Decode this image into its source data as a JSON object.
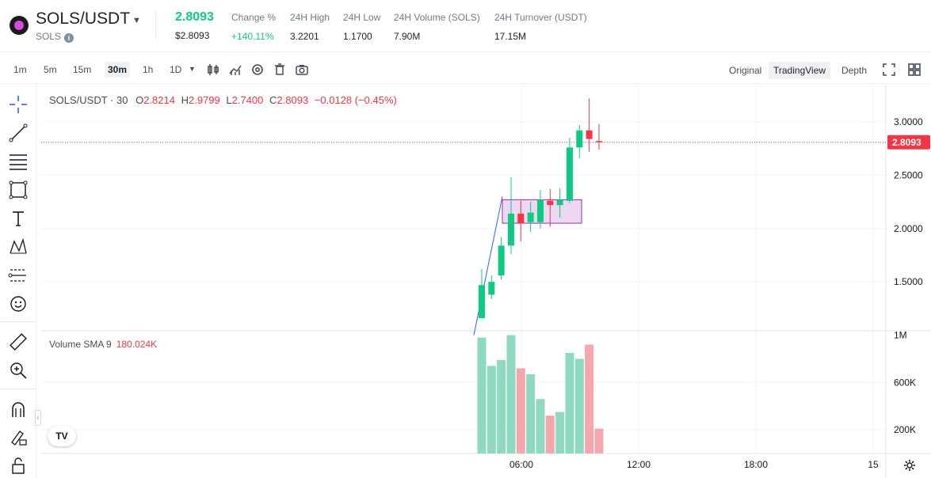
{
  "header": {
    "pair": "SOLS/USDT",
    "sub": "SOLS",
    "last_price": "2.8093",
    "last_price_usd": "$2.8093",
    "stats": [
      {
        "label": "Change %",
        "value": "+140.11%",
        "positive": true
      },
      {
        "label": "24H High",
        "value": "3.2201"
      },
      {
        "label": "24H Low",
        "value": "1.1700"
      },
      {
        "label": "24H Volume (SOLS)",
        "value": "7.90M"
      },
      {
        "label": "24H Turnover (USDT)",
        "value": "17.15M"
      }
    ]
  },
  "toolbar": {
    "intervals": [
      "1m",
      "5m",
      "15m",
      "30m",
      "1h",
      "1D"
    ],
    "active_interval": "30m",
    "views": [
      "Original",
      "TradingView",
      "Depth"
    ],
    "active_view": "TradingView",
    "icons": [
      "candle-type-icon",
      "indicators-icon",
      "settings-icon",
      "delete-icon",
      "screenshot-icon",
      "fullscreen-icon",
      "layout-icon"
    ]
  },
  "left_tools": [
    "crosshair-icon",
    "trend-line-icon",
    "fib-retracement-icon",
    "rectangle-icon",
    "text-icon",
    "pattern-icon",
    "prediction-icon",
    "emoji-icon",
    "ruler-icon",
    "zoom-in-icon",
    "magnet-icon",
    "lock-drawing-icon",
    "lock-icon"
  ],
  "legend": {
    "symbol": "SOLS/USDT · 30",
    "open_label": "O",
    "open": "2.8214",
    "high_label": "H",
    "high": "2.9799",
    "low_label": "L",
    "low": "2.7400",
    "close_label": "C",
    "close": "2.8093",
    "change": "−0.0128 (−0.45%)"
  },
  "volume_legend": {
    "label": "Volume SMA 9",
    "value": "180.024K"
  },
  "price_badge": "2.8093",
  "colors": {
    "up": "#0ecb81",
    "down": "#f23645",
    "vol_up": "#8fd9c0",
    "vol_down": "#f6a6ad",
    "accent": "#f23645"
  },
  "chart_data": {
    "type": "candlestick",
    "y_ticks": [
      "3.0000",
      "2.5000",
      "2.0000",
      "1.5000"
    ],
    "y_tick_values": [
      3.0,
      2.5,
      2.0,
      1.5
    ],
    "x_ticks": [
      "06:00",
      "12:00",
      "18:00",
      "15"
    ],
    "volume_ticks": [
      "1M",
      "600K",
      "200K"
    ],
    "volume_tick_values": [
      1000000,
      600000,
      200000
    ],
    "current_price": 2.8093,
    "candles": [
      {
        "open": 1.16,
        "high": 1.62,
        "low": 1.16,
        "close": 1.47,
        "volume": 980000
      },
      {
        "open": 1.38,
        "high": 1.56,
        "low": 1.34,
        "close": 1.5,
        "volume": 740000
      },
      {
        "open": 1.56,
        "high": 1.92,
        "low": 1.52,
        "close": 1.84,
        "volume": 790000
      },
      {
        "open": 1.84,
        "high": 2.48,
        "low": 1.76,
        "close": 2.14,
        "volume": 1000000
      },
      {
        "open": 2.14,
        "high": 2.26,
        "low": 1.88,
        "close": 2.05,
        "volume": 720000
      },
      {
        "open": 2.06,
        "high": 2.25,
        "low": 1.97,
        "close": 2.15,
        "volume": 670000
      },
      {
        "open": 2.06,
        "high": 2.36,
        "low": 2.0,
        "close": 2.27,
        "volume": 460000
      },
      {
        "open": 2.26,
        "high": 2.37,
        "low": 2.02,
        "close": 2.22,
        "volume": 320000
      },
      {
        "open": 2.22,
        "high": 2.38,
        "low": 2.1,
        "close": 2.27,
        "volume": 350000
      },
      {
        "open": 2.26,
        "high": 2.85,
        "low": 2.24,
        "close": 2.76,
        "volume": 850000
      },
      {
        "open": 2.76,
        "high": 2.97,
        "low": 2.66,
        "close": 2.92,
        "volume": 800000
      },
      {
        "open": 2.92,
        "high": 3.22,
        "low": 2.72,
        "close": 2.84,
        "volume": 920000
      },
      {
        "open": 2.82,
        "high": 2.98,
        "low": 2.74,
        "close": 2.81,
        "volume": 210000
      }
    ]
  }
}
